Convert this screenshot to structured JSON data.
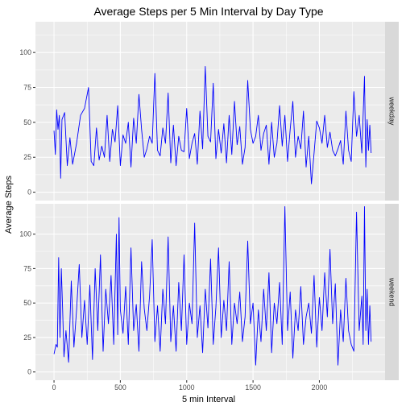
{
  "chart_data": {
    "type": "line",
    "title": "Average Steps per 5 Min Interval by Day Type",
    "xlabel": "5 min Interval",
    "ylabel": "Average Steps",
    "xlim": [
      -140,
      2495
    ],
    "ylim": [
      -6,
      122
    ],
    "x_ticks": [
      0,
      500,
      1000,
      1500,
      2000
    ],
    "y_ticks": [
      0,
      25,
      50,
      75,
      100
    ],
    "line_color": "#0000ff",
    "grid": true,
    "facet": "row",
    "panels": [
      {
        "strip": "weekday",
        "points": [
          [
            0,
            44
          ],
          [
            10,
            27
          ],
          [
            20,
            59
          ],
          [
            30,
            45
          ],
          [
            40,
            55
          ],
          [
            50,
            10
          ],
          [
            60,
            52
          ],
          [
            80,
            57
          ],
          [
            100,
            19
          ],
          [
            120,
            39
          ],
          [
            140,
            20
          ],
          [
            170,
            35
          ],
          [
            200,
            55
          ],
          [
            230,
            60
          ],
          [
            260,
            75
          ],
          [
            280,
            22
          ],
          [
            300,
            19
          ],
          [
            320,
            46
          ],
          [
            340,
            23
          ],
          [
            360,
            33
          ],
          [
            380,
            25
          ],
          [
            400,
            55
          ],
          [
            420,
            22
          ],
          [
            440,
            45
          ],
          [
            460,
            36
          ],
          [
            480,
            62
          ],
          [
            500,
            19
          ],
          [
            520,
            41
          ],
          [
            540,
            35
          ],
          [
            560,
            50
          ],
          [
            580,
            18
          ],
          [
            600,
            53
          ],
          [
            620,
            35
          ],
          [
            640,
            70
          ],
          [
            660,
            45
          ],
          [
            680,
            25
          ],
          [
            700,
            31
          ],
          [
            720,
            40
          ],
          [
            740,
            35
          ],
          [
            760,
            85
          ],
          [
            780,
            30
          ],
          [
            800,
            26
          ],
          [
            820,
            46
          ],
          [
            840,
            35
          ],
          [
            860,
            71
          ],
          [
            880,
            21
          ],
          [
            900,
            48
          ],
          [
            920,
            19
          ],
          [
            940,
            40
          ],
          [
            960,
            30
          ],
          [
            980,
            29
          ],
          [
            1000,
            60
          ],
          [
            1020,
            24
          ],
          [
            1040,
            35
          ],
          [
            1060,
            42
          ],
          [
            1080,
            20
          ],
          [
            1100,
            58
          ],
          [
            1120,
            31
          ],
          [
            1140,
            90
          ],
          [
            1160,
            40
          ],
          [
            1180,
            36
          ],
          [
            1200,
            78
          ],
          [
            1220,
            24
          ],
          [
            1240,
            45
          ],
          [
            1260,
            28
          ],
          [
            1280,
            49
          ],
          [
            1300,
            21
          ],
          [
            1320,
            55
          ],
          [
            1340,
            27
          ],
          [
            1360,
            65
          ],
          [
            1380,
            34
          ],
          [
            1400,
            47
          ],
          [
            1420,
            20
          ],
          [
            1440,
            32
          ],
          [
            1460,
            80
          ],
          [
            1480,
            45
          ],
          [
            1500,
            35
          ],
          [
            1520,
            40
          ],
          [
            1540,
            55
          ],
          [
            1560,
            30
          ],
          [
            1580,
            42
          ],
          [
            1600,
            48
          ],
          [
            1620,
            20
          ],
          [
            1640,
            50
          ],
          [
            1660,
            25
          ],
          [
            1680,
            35
          ],
          [
            1700,
            62
          ],
          [
            1720,
            33
          ],
          [
            1740,
            55
          ],
          [
            1760,
            22
          ],
          [
            1780,
            45
          ],
          [
            1800,
            65
          ],
          [
            1820,
            25
          ],
          [
            1840,
            40
          ],
          [
            1860,
            31
          ],
          [
            1880,
            58
          ],
          [
            1900,
            18
          ],
          [
            1920,
            40
          ],
          [
            1940,
            6
          ],
          [
            1960,
            28
          ],
          [
            1980,
            51
          ],
          [
            2000,
            46
          ],
          [
            2020,
            35
          ],
          [
            2040,
            55
          ],
          [
            2060,
            32
          ],
          [
            2080,
            43
          ],
          [
            2100,
            30
          ],
          [
            2120,
            26
          ],
          [
            2140,
            31
          ],
          [
            2160,
            37
          ],
          [
            2180,
            20
          ],
          [
            2200,
            58
          ],
          [
            2220,
            30
          ],
          [
            2240,
            22
          ],
          [
            2260,
            72
          ],
          [
            2280,
            40
          ],
          [
            2300,
            55
          ],
          [
            2320,
            28
          ],
          [
            2340,
            83
          ],
          [
            2350,
            18
          ],
          [
            2360,
            52
          ],
          [
            2370,
            30
          ],
          [
            2380,
            48
          ],
          [
            2390,
            28
          ]
        ]
      },
      {
        "strip": "weekend",
        "points": [
          [
            0,
            13
          ],
          [
            15,
            20
          ],
          [
            25,
            18
          ],
          [
            35,
            83
          ],
          [
            45,
            25
          ],
          [
            55,
            75
          ],
          [
            65,
            45
          ],
          [
            75,
            11
          ],
          [
            90,
            30
          ],
          [
            110,
            7
          ],
          [
            130,
            66
          ],
          [
            150,
            18
          ],
          [
            170,
            45
          ],
          [
            190,
            78
          ],
          [
            210,
            25
          ],
          [
            230,
            52
          ],
          [
            250,
            20
          ],
          [
            270,
            63
          ],
          [
            290,
            9
          ],
          [
            310,
            75
          ],
          [
            330,
            30
          ],
          [
            350,
            85
          ],
          [
            370,
            15
          ],
          [
            390,
            60
          ],
          [
            410,
            35
          ],
          [
            430,
            70
          ],
          [
            450,
            20
          ],
          [
            470,
            100
          ],
          [
            480,
            27
          ],
          [
            490,
            112
          ],
          [
            500,
            45
          ],
          [
            520,
            28
          ],
          [
            540,
            62
          ],
          [
            560,
            20
          ],
          [
            580,
            90
          ],
          [
            600,
            30
          ],
          [
            620,
            49
          ],
          [
            640,
            15
          ],
          [
            660,
            80
          ],
          [
            680,
            46
          ],
          [
            700,
            30
          ],
          [
            720,
            55
          ],
          [
            740,
            96
          ],
          [
            760,
            22
          ],
          [
            780,
            48
          ],
          [
            800,
            15
          ],
          [
            820,
            60
          ],
          [
            840,
            35
          ],
          [
            860,
            98
          ],
          [
            880,
            22
          ],
          [
            900,
            48
          ],
          [
            920,
            15
          ],
          [
            940,
            65
          ],
          [
            960,
            30
          ],
          [
            980,
            85
          ],
          [
            1000,
            20
          ],
          [
            1020,
            50
          ],
          [
            1040,
            35
          ],
          [
            1060,
            108
          ],
          [
            1080,
            25
          ],
          [
            1100,
            48
          ],
          [
            1120,
            14
          ],
          [
            1140,
            60
          ],
          [
            1160,
            32
          ],
          [
            1180,
            82
          ],
          [
            1200,
            20
          ],
          [
            1220,
            47
          ],
          [
            1240,
            90
          ],
          [
            1260,
            25
          ],
          [
            1280,
            52
          ],
          [
            1300,
            30
          ],
          [
            1320,
            80
          ],
          [
            1340,
            20
          ],
          [
            1360,
            50
          ],
          [
            1380,
            35
          ],
          [
            1400,
            58
          ],
          [
            1420,
            22
          ],
          [
            1440,
            40
          ],
          [
            1460,
            95
          ],
          [
            1480,
            35
          ],
          [
            1500,
            50
          ],
          [
            1520,
            5
          ],
          [
            1540,
            45
          ],
          [
            1560,
            22
          ],
          [
            1580,
            60
          ],
          [
            1600,
            30
          ],
          [
            1620,
            72
          ],
          [
            1640,
            14
          ],
          [
            1660,
            50
          ],
          [
            1680,
            35
          ],
          [
            1700,
            65
          ],
          [
            1720,
            20
          ],
          [
            1740,
            120
          ],
          [
            1760,
            30
          ],
          [
            1780,
            58
          ],
          [
            1800,
            10
          ],
          [
            1820,
            45
          ],
          [
            1840,
            30
          ],
          [
            1860,
            62
          ],
          [
            1880,
            20
          ],
          [
            1900,
            40
          ],
          [
            1920,
            50
          ],
          [
            1940,
            28
          ],
          [
            1960,
            70
          ],
          [
            1980,
            18
          ],
          [
            2000,
            54
          ],
          [
            2020,
            30
          ],
          [
            2040,
            72
          ],
          [
            2060,
            40
          ],
          [
            2080,
            89
          ],
          [
            2100,
            35
          ],
          [
            2120,
            64
          ],
          [
            2140,
            5
          ],
          [
            2160,
            45
          ],
          [
            2180,
            22
          ],
          [
            2200,
            68
          ],
          [
            2220,
            30
          ],
          [
            2240,
            20
          ],
          [
            2260,
            15
          ],
          [
            2280,
            116
          ],
          [
            2300,
            30
          ],
          [
            2320,
            55
          ],
          [
            2330,
            20
          ],
          [
            2340,
            120
          ],
          [
            2350,
            30
          ],
          [
            2360,
            60
          ],
          [
            2370,
            20
          ],
          [
            2380,
            48
          ],
          [
            2390,
            22
          ]
        ]
      }
    ]
  }
}
